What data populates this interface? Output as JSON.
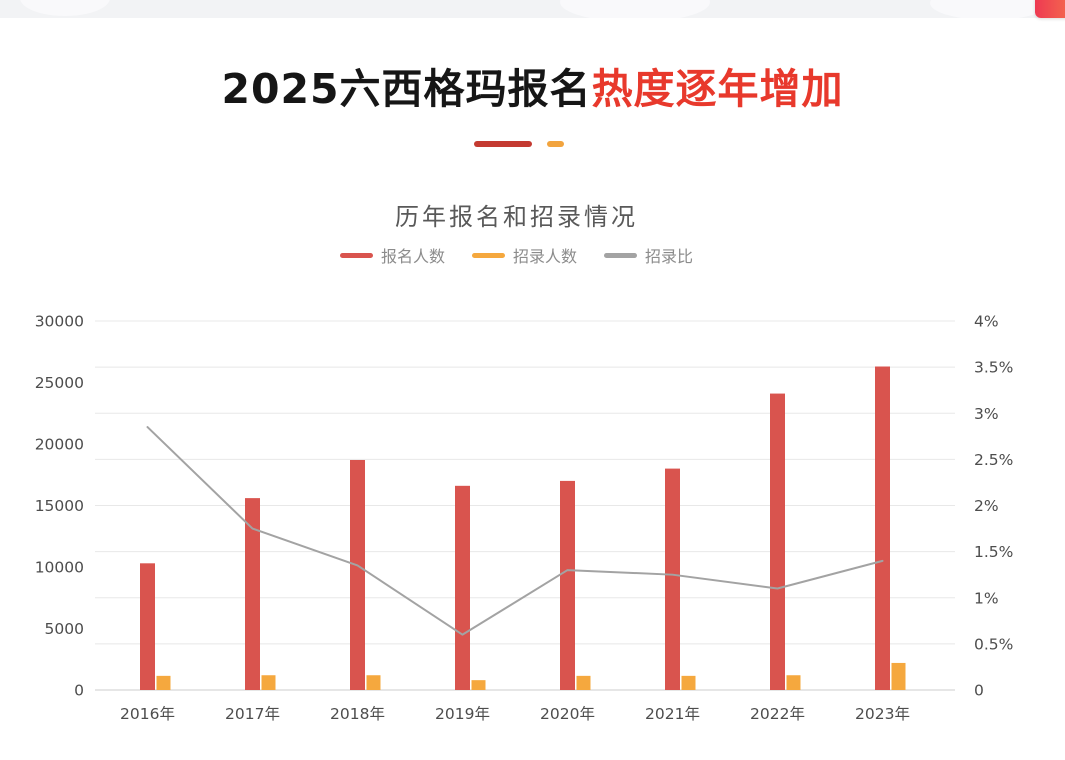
{
  "header": {
    "title_black": "2025六西格玛报名",
    "title_red": "热度逐年增加"
  },
  "decor": {
    "top_strip_color": "#f2f3f5",
    "fab_gradient": [
      "#ee3a52",
      "#f5714d"
    ],
    "underline_red": "#c43a31",
    "underline_orange": "#f2a43e",
    "title_red_color": "#e8392c"
  },
  "chart_data": {
    "type": "bar",
    "title": "历年报名和招录情况",
    "categories": [
      "2016年",
      "2017年",
      "2018年",
      "2019年",
      "2020年",
      "2021年",
      "2022年",
      "2023年"
    ],
    "series": [
      {
        "name": "报名人数",
        "type": "bar",
        "y_axis": "left",
        "color": "#d9544e",
        "values": [
          10300,
          15600,
          18700,
          16600,
          17000,
          18000,
          24100,
          26300
        ]
      },
      {
        "name": "招录人数",
        "type": "bar",
        "y_axis": "left",
        "color": "#f5a83e",
        "values": [
          1150,
          1200,
          1200,
          800,
          1150,
          1150,
          1200,
          2200
        ]
      },
      {
        "name": "招录比",
        "type": "line",
        "y_axis": "right",
        "color": "#a3a3a3",
        "unit": "%",
        "values": [
          2.85,
          1.75,
          1.35,
          0.6,
          1.3,
          1.25,
          1.1,
          1.4
        ]
      }
    ],
    "left_axis": {
      "min": 0,
      "max": 30000,
      "interval": 5000,
      "tick_labels": [
        "0",
        "5000",
        "10000",
        "15000",
        "20000",
        "25000",
        "30000"
      ]
    },
    "right_axis": {
      "min": 0,
      "max": 4,
      "interval": 0.5,
      "tick_labels": [
        "0",
        "0.5%",
        "1%",
        "1.5%",
        "2%",
        "2.5%",
        "3%",
        "3.5%",
        "4%"
      ]
    },
    "grid": true,
    "legend_position": "top",
    "gridline_color": "#e8e8e8",
    "axis_line_color": "#cccccc",
    "axis_label_color": "#4d4d4d"
  }
}
